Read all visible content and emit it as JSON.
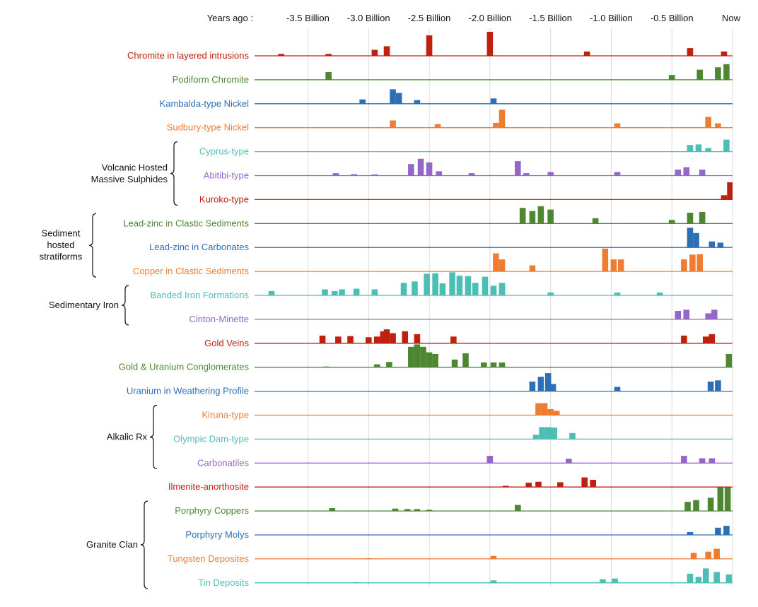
{
  "chart_data": {
    "type": "bar",
    "axis_title": "Years ago :",
    "xlim": [
      -3.94,
      0.0
    ],
    "x_ticks": [
      {
        "value": -3.5,
        "label": "-3.5 Billion"
      },
      {
        "value": -3.0,
        "label": "-3.0 Billion"
      },
      {
        "value": -2.5,
        "label": "-2.5 Billion"
      },
      {
        "value": -2.0,
        "label": "-2.0 Billion"
      },
      {
        "value": -1.5,
        "label": "-1.5 Billion"
      },
      {
        "value": -1.0,
        "label": "-1.0 Billion"
      },
      {
        "value": -0.5,
        "label": "-0.5 Billion"
      },
      {
        "value": 0.0,
        "label": "Now"
      }
    ],
    "grid": true,
    "bar_width": 0.05,
    "series": [
      {
        "name": "Chromite in layered intrusions",
        "color": "#c0200f",
        "bars": [
          [
            -3.72,
            0.08
          ],
          [
            -3.33,
            0.08
          ],
          [
            -2.95,
            0.25
          ],
          [
            -2.85,
            0.4
          ],
          [
            -2.5,
            0.85
          ],
          [
            -2.0,
            1.0
          ],
          [
            -1.2,
            0.18
          ],
          [
            -0.35,
            0.32
          ],
          [
            -0.07,
            0.18
          ]
        ]
      },
      {
        "name": "Podiform Chromite",
        "color": "#4e8732",
        "bars": [
          [
            -3.33,
            0.32
          ],
          [
            -0.5,
            0.2
          ],
          [
            -0.27,
            0.42
          ],
          [
            -0.12,
            0.52
          ],
          [
            -0.05,
            0.65
          ]
        ]
      },
      {
        "name": "Kambalda-type Nickel",
        "color": "#2c6fb6",
        "bars": [
          [
            -3.05,
            0.18
          ],
          [
            -2.8,
            0.6
          ],
          [
            -2.75,
            0.45
          ],
          [
            -2.6,
            0.15
          ],
          [
            -1.97,
            0.22
          ]
        ]
      },
      {
        "name": "Sudbury-type Nickel",
        "color": "#ef7d31",
        "bars": [
          [
            -2.8,
            0.3
          ],
          [
            -2.43,
            0.15
          ],
          [
            -1.95,
            0.2
          ],
          [
            -1.9,
            0.75
          ],
          [
            -0.95,
            0.18
          ],
          [
            -0.2,
            0.45
          ],
          [
            -0.12,
            0.18
          ]
        ]
      },
      {
        "name": "Cyprus-type",
        "color": "#4bbfb3",
        "bars": [
          [
            -0.35,
            0.28
          ],
          [
            -0.28,
            0.3
          ],
          [
            -0.2,
            0.15
          ],
          [
            -0.05,
            0.5
          ]
        ]
      },
      {
        "name": "Abitibi-type",
        "color": "#9466c8",
        "bars": [
          [
            -3.27,
            0.1
          ],
          [
            -3.12,
            0.06
          ],
          [
            -2.95,
            0.05
          ],
          [
            -2.65,
            0.48
          ],
          [
            -2.57,
            0.7
          ],
          [
            -2.5,
            0.55
          ],
          [
            -2.42,
            0.18
          ],
          [
            -2.15,
            0.1
          ],
          [
            -1.77,
            0.6
          ],
          [
            -1.7,
            0.1
          ],
          [
            -1.5,
            0.15
          ],
          [
            -0.95,
            0.15
          ],
          [
            -0.45,
            0.25
          ],
          [
            -0.38,
            0.35
          ],
          [
            -0.25,
            0.25
          ]
        ]
      },
      {
        "name": "Kuroko-type",
        "color": "#c0200f",
        "bars": [
          [
            -0.07,
            0.18
          ],
          [
            -0.02,
            0.72
          ]
        ]
      },
      {
        "name": "Lead-zinc in Clastic Sediments",
        "color": "#4e8732",
        "bars": [
          [
            -1.73,
            0.65
          ],
          [
            -1.65,
            0.52
          ],
          [
            -1.58,
            0.72
          ],
          [
            -1.5,
            0.58
          ],
          [
            -1.13,
            0.22
          ],
          [
            -0.5,
            0.15
          ],
          [
            -0.35,
            0.45
          ],
          [
            -0.25,
            0.48
          ]
        ]
      },
      {
        "name": "Lead-zinc in Carbonates",
        "color": "#2c6fb6",
        "bars": [
          [
            -0.35,
            0.82
          ],
          [
            -0.3,
            0.6
          ],
          [
            -0.17,
            0.25
          ],
          [
            -0.1,
            0.2
          ]
        ]
      },
      {
        "name": "Copper in Clastic Sediments",
        "color": "#ef7d31",
        "bars": [
          [
            -1.95,
            0.75
          ],
          [
            -1.9,
            0.5
          ],
          [
            -1.65,
            0.25
          ],
          [
            -1.05,
            0.95
          ],
          [
            -0.98,
            0.5
          ],
          [
            -0.92,
            0.5
          ],
          [
            -0.4,
            0.5
          ],
          [
            -0.33,
            0.7
          ],
          [
            -0.27,
            0.72
          ]
        ]
      },
      {
        "name": "Banded Iron Formations",
        "color": "#4bbfb3",
        "bars": [
          [
            -3.8,
            0.18
          ],
          [
            -3.36,
            0.25
          ],
          [
            -3.28,
            0.18
          ],
          [
            -3.22,
            0.25
          ],
          [
            -3.1,
            0.28
          ],
          [
            -2.95,
            0.25
          ],
          [
            -2.71,
            0.52
          ],
          [
            -2.62,
            0.58
          ],
          [
            -2.52,
            0.9
          ],
          [
            -2.45,
            0.92
          ],
          [
            -2.39,
            0.5
          ],
          [
            -2.31,
            0.96
          ],
          [
            -2.25,
            0.82
          ],
          [
            -2.18,
            0.8
          ],
          [
            -2.12,
            0.52
          ],
          [
            -2.04,
            0.78
          ],
          [
            -1.97,
            0.4
          ],
          [
            -1.9,
            0.52
          ],
          [
            -1.9,
            0.4
          ],
          [
            -1.5,
            0.12
          ],
          [
            -0.95,
            0.12
          ],
          [
            -0.6,
            0.12
          ]
        ]
      },
      {
        "name": "Cinton-Minette",
        "color": "#9466c8",
        "bars": [
          [
            -0.45,
            0.35
          ],
          [
            -0.38,
            0.4
          ],
          [
            -0.2,
            0.25
          ],
          [
            -0.15,
            0.4
          ]
        ]
      },
      {
        "name": "Gold Veins",
        "color": "#c0200f",
        "bars": [
          [
            -3.38,
            0.32
          ],
          [
            -3.25,
            0.28
          ],
          [
            -3.15,
            0.3
          ],
          [
            -3.0,
            0.25
          ],
          [
            -2.93,
            0.28
          ],
          [
            -2.88,
            0.5
          ],
          [
            -2.85,
            0.58
          ],
          [
            -2.8,
            0.42
          ],
          [
            -2.7,
            0.5
          ],
          [
            -2.6,
            0.38
          ],
          [
            -2.3,
            0.28
          ],
          [
            -0.4,
            0.32
          ],
          [
            -0.22,
            0.28
          ],
          [
            -0.17,
            0.38
          ]
        ]
      },
      {
        "name": "Gold & Uranium Conglomerates",
        "color": "#4e8732",
        "bars": [
          [
            -3.35,
            0.03
          ],
          [
            -2.93,
            0.12
          ],
          [
            -2.83,
            0.22
          ],
          [
            -2.65,
            0.85
          ],
          [
            -2.6,
            0.95
          ],
          [
            -2.55,
            0.85
          ],
          [
            -2.5,
            0.62
          ],
          [
            -2.45,
            0.55
          ],
          [
            -2.29,
            0.32
          ],
          [
            -2.2,
            0.58
          ],
          [
            -2.05,
            0.2
          ],
          [
            -1.97,
            0.2
          ],
          [
            -1.9,
            0.2
          ],
          [
            -0.03,
            0.55
          ]
        ]
      },
      {
        "name": "Uranium in Weathering Profile",
        "color": "#2c6fb6",
        "bars": [
          [
            -1.65,
            0.4
          ],
          [
            -1.58,
            0.6
          ],
          [
            -1.52,
            0.75
          ],
          [
            -1.48,
            0.3
          ],
          [
            -0.95,
            0.18
          ],
          [
            -0.18,
            0.4
          ],
          [
            -0.12,
            0.45
          ]
        ]
      },
      {
        "name": "Kiruna-type",
        "color": "#ef7d31",
        "bars": [
          [
            -1.6,
            0.5
          ],
          [
            -1.55,
            0.5
          ],
          [
            -1.5,
            0.25
          ],
          [
            -1.45,
            0.18
          ]
        ]
      },
      {
        "name": "Olympic Dam-type",
        "color": "#4bbfb3",
        "bars": [
          [
            -1.62,
            0.18
          ],
          [
            -1.57,
            0.5
          ],
          [
            -1.52,
            0.5
          ],
          [
            -1.47,
            0.48
          ],
          [
            -1.32,
            0.25
          ]
        ]
      },
      {
        "name": "Carbonatiles",
        "color": "#9466c8",
        "bars": [
          [
            -2.0,
            0.3
          ],
          [
            -1.35,
            0.18
          ],
          [
            -0.4,
            0.3
          ],
          [
            -0.25,
            0.2
          ],
          [
            -0.17,
            0.2
          ]
        ]
      },
      {
        "name": "Ilmenite-anorthosite",
        "color": "#c0200f",
        "bars": [
          [
            -1.87,
            0.05
          ],
          [
            -1.68,
            0.18
          ],
          [
            -1.6,
            0.22
          ],
          [
            -1.42,
            0.2
          ],
          [
            -1.22,
            0.4
          ],
          [
            -1.15,
            0.3
          ]
        ]
      },
      {
        "name": "Porphyry Coppers",
        "color": "#4e8732",
        "bars": [
          [
            -3.3,
            0.12
          ],
          [
            -2.78,
            0.1
          ],
          [
            -2.68,
            0.08
          ],
          [
            -2.6,
            0.08
          ],
          [
            -2.5,
            0.05
          ],
          [
            -1.77,
            0.25
          ],
          [
            -0.37,
            0.38
          ],
          [
            -0.3,
            0.45
          ],
          [
            -0.18,
            0.55
          ],
          [
            -0.1,
            0.98
          ],
          [
            -0.04,
            1.0
          ]
        ]
      },
      {
        "name": "Porphyry Molys",
        "color": "#2c6fb6",
        "bars": [
          [
            -0.35,
            0.12
          ],
          [
            -0.12,
            0.3
          ],
          [
            -0.05,
            0.38
          ]
        ]
      },
      {
        "name": "Tungsten Deposites",
        "color": "#ef7d31",
        "bars": [
          [
            -3.0,
            0.03
          ],
          [
            -1.97,
            0.12
          ],
          [
            -0.32,
            0.25
          ],
          [
            -0.2,
            0.3
          ],
          [
            -0.13,
            0.42
          ]
        ]
      },
      {
        "name": "Tin Deposits",
        "color": "#4bbfb3",
        "bars": [
          [
            -3.1,
            0.03
          ],
          [
            -1.97,
            0.1
          ],
          [
            -1.07,
            0.15
          ],
          [
            -0.97,
            0.18
          ],
          [
            -0.35,
            0.38
          ],
          [
            -0.28,
            0.25
          ],
          [
            -0.22,
            0.6
          ],
          [
            -0.13,
            0.45
          ],
          [
            -0.03,
            0.35
          ]
        ]
      }
    ],
    "groups": [
      {
        "label_lines": [
          "Volcanic Hosted",
          "Massive Sulphides"
        ],
        "first_series": 4,
        "last_series": 6
      },
      {
        "label_lines": [
          "Sediment",
          "hosted",
          "stratiforms"
        ],
        "first_series": 7,
        "last_series": 9
      },
      {
        "label_lines": [
          "Sedimentary Iron"
        ],
        "first_series": 10,
        "last_series": 11
      },
      {
        "label_lines": [
          "Alkalic Rx"
        ],
        "first_series": 15,
        "last_series": 17
      },
      {
        "label_lines": [
          "Granite Clan"
        ],
        "first_series": 19,
        "last_series": 22
      }
    ]
  }
}
